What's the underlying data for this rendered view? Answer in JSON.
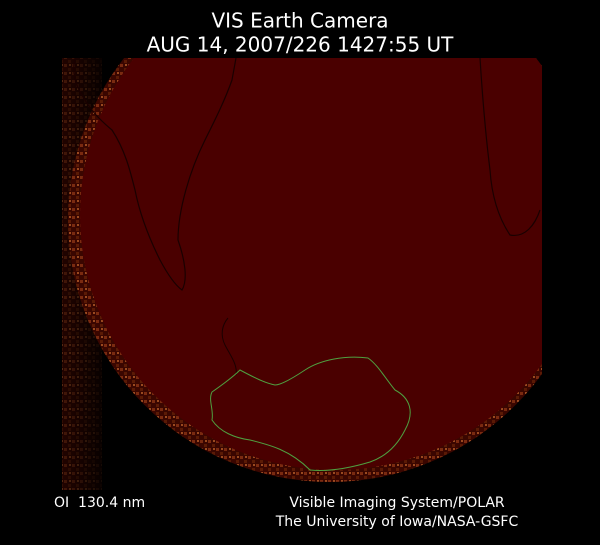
{
  "header": {
    "title": "VIS Earth Camera",
    "timestamp": "AUG 14, 2007/226 1427:55 UT"
  },
  "footer": {
    "filter": "OI  130.4 nm",
    "instrument": "Visible Imaging System/POLAR",
    "institution": "The University of Iowa/NASA-GSFC"
  }
}
